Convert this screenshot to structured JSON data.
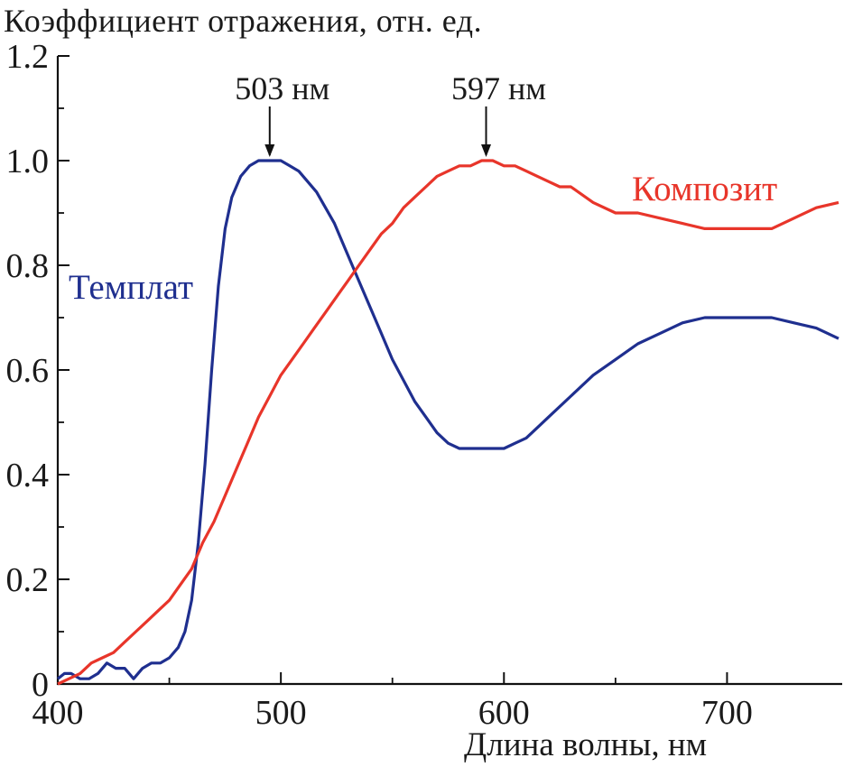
{
  "chart_data": {
    "type": "line",
    "title": "",
    "xlabel": "Длина волны, нм",
    "ylabel": "Коэффициент отражения, отн. ед.",
    "xlim": [
      400,
      750
    ],
    "ylim": [
      0,
      1.2
    ],
    "x_ticks": [
      400,
      500,
      600,
      700
    ],
    "x_tick_labels": [
      "400",
      "500",
      "600",
      "700"
    ],
    "y_ticks": [
      0,
      0.2,
      0.4,
      0.6,
      0.8,
      1.0,
      1.2
    ],
    "y_tick_labels": [
      "0",
      "0.2",
      "0.4",
      "0.6",
      "0.8",
      "1.0",
      "1.2"
    ],
    "grid": false,
    "legend": "none",
    "series": [
      {
        "name": "Темплат",
        "color": "#1f2f8f",
        "x": [
          400,
          403,
          406,
          410,
          414,
          418,
          422,
          426,
          430,
          434,
          438,
          442,
          446,
          450,
          454,
          457,
          460,
          463,
          466,
          469,
          472,
          475,
          478,
          482,
          486,
          490,
          494,
          497,
          500,
          504,
          508,
          512,
          516,
          520,
          524,
          528,
          532,
          536,
          540,
          545,
          550,
          555,
          560,
          565,
          570,
          575,
          580,
          585,
          590,
          595,
          600,
          605,
          610,
          615,
          620,
          630,
          640,
          650,
          660,
          670,
          680,
          690,
          700,
          710,
          720,
          730,
          740,
          750
        ],
        "y": [
          0.01,
          0.02,
          0.02,
          0.01,
          0.01,
          0.02,
          0.04,
          0.03,
          0.03,
          0.01,
          0.03,
          0.04,
          0.04,
          0.05,
          0.07,
          0.1,
          0.16,
          0.27,
          0.42,
          0.6,
          0.76,
          0.87,
          0.93,
          0.97,
          0.99,
          1.0,
          1.0,
          1.0,
          1.0,
          0.99,
          0.98,
          0.96,
          0.94,
          0.91,
          0.88,
          0.84,
          0.8,
          0.76,
          0.72,
          0.67,
          0.62,
          0.58,
          0.54,
          0.51,
          0.48,
          0.46,
          0.45,
          0.45,
          0.45,
          0.45,
          0.45,
          0.46,
          0.47,
          0.49,
          0.51,
          0.55,
          0.59,
          0.62,
          0.65,
          0.67,
          0.69,
          0.7,
          0.7,
          0.7,
          0.7,
          0.69,
          0.68,
          0.66
        ]
      },
      {
        "name": "Композит",
        "color": "#e8352a",
        "x": [
          400,
          405,
          410,
          415,
          420,
          425,
          430,
          435,
          440,
          445,
          450,
          455,
          460,
          465,
          470,
          475,
          480,
          485,
          490,
          495,
          500,
          505,
          510,
          515,
          520,
          525,
          530,
          535,
          540,
          545,
          550,
          555,
          560,
          565,
          570,
          575,
          580,
          585,
          590,
          595,
          600,
          605,
          610,
          615,
          620,
          625,
          630,
          640,
          650,
          660,
          670,
          680,
          690,
          700,
          710,
          720,
          730,
          740,
          750
        ],
        "y": [
          0.0,
          0.01,
          0.02,
          0.04,
          0.05,
          0.06,
          0.08,
          0.1,
          0.12,
          0.14,
          0.16,
          0.19,
          0.22,
          0.27,
          0.31,
          0.36,
          0.41,
          0.46,
          0.51,
          0.55,
          0.59,
          0.62,
          0.65,
          0.68,
          0.71,
          0.74,
          0.77,
          0.8,
          0.83,
          0.86,
          0.88,
          0.91,
          0.93,
          0.95,
          0.97,
          0.98,
          0.99,
          0.99,
          1.0,
          1.0,
          0.99,
          0.99,
          0.98,
          0.97,
          0.96,
          0.95,
          0.95,
          0.92,
          0.9,
          0.9,
          0.89,
          0.88,
          0.87,
          0.87,
          0.87,
          0.87,
          0.89,
          0.91,
          0.92
        ]
      }
    ],
    "annotations": [
      {
        "text": "503 нм",
        "x": 495,
        "y": 1.0
      },
      {
        "text": "597 нм",
        "x": 592,
        "y": 1.0
      }
    ],
    "series_labels": [
      {
        "text": "Темплат",
        "color": "#1f2f8f"
      },
      {
        "text": "Композит",
        "color": "#e8352a"
      }
    ]
  }
}
